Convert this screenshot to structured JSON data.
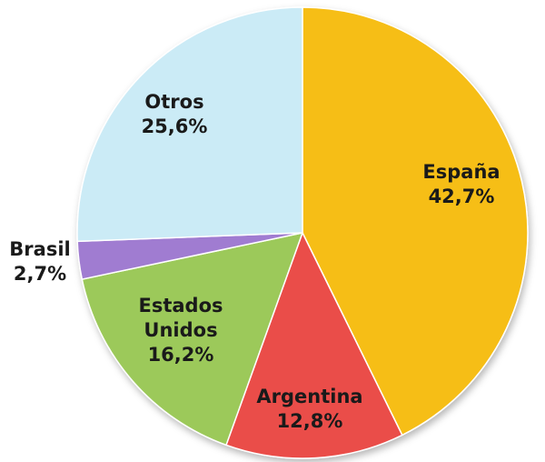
{
  "chart_data": {
    "type": "pie",
    "start": "top",
    "direction": "clockwise",
    "title": "",
    "legend": "none",
    "slices": [
      {
        "label": [
          "España"
        ],
        "value_text": "42,7%",
        "value": 42.7,
        "color": "#F6BE17",
        "border": "#D99E08"
      },
      {
        "label": [
          "Argentina"
        ],
        "value_text": "12,8%",
        "value": 12.8,
        "color": "#EA4E4A",
        "border": "#C23A37"
      },
      {
        "label": [
          "Estados",
          "Unidos"
        ],
        "value_text": "16,2%",
        "value": 16.2,
        "color": "#9CC95A",
        "border": "#7FA83E"
      },
      {
        "label": [
          "Brasil"
        ],
        "value_text": "2,7%",
        "value": 2.7,
        "color": "#A07CD1",
        "border": "#7F5DB0"
      },
      {
        "label": [
          "Otros"
        ],
        "value_text": "25,6%",
        "value": 25.6,
        "color": "#CBEBF6",
        "border": "#9FCCDC"
      }
    ]
  }
}
